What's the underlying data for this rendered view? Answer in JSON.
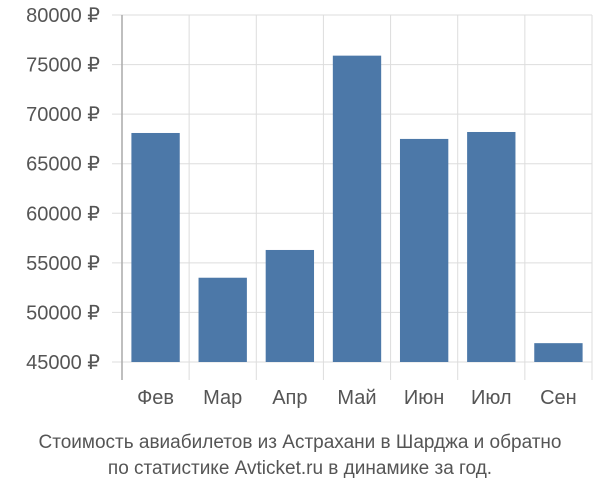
{
  "chart_data": {
    "type": "bar",
    "categories": [
      "Фев",
      "Мар",
      "Апр",
      "Май",
      "Июн",
      "Июл",
      "Сен"
    ],
    "values": [
      68100,
      53500,
      56300,
      75900,
      67500,
      68200,
      46900
    ],
    "ylim": [
      45000,
      80000
    ],
    "yticks": [
      45000,
      50000,
      55000,
      60000,
      65000,
      70000,
      75000,
      80000
    ],
    "ytick_labels": [
      "45000 ₽",
      "50000 ₽",
      "55000 ₽",
      "60000 ₽",
      "65000 ₽",
      "70000 ₽",
      "75000 ₽",
      "80000 ₽"
    ],
    "grid": true,
    "bar_color": "#4c78a8",
    "grid_color": "#dddddd",
    "axis_color": "#aaaaaa",
    "text_color": "#555555"
  },
  "caption": {
    "line1": "Стоимость авиабилетов из Астрахани в Шарджа и обратно",
    "line2": "по статистике Avticket.ru в динамике за год."
  }
}
